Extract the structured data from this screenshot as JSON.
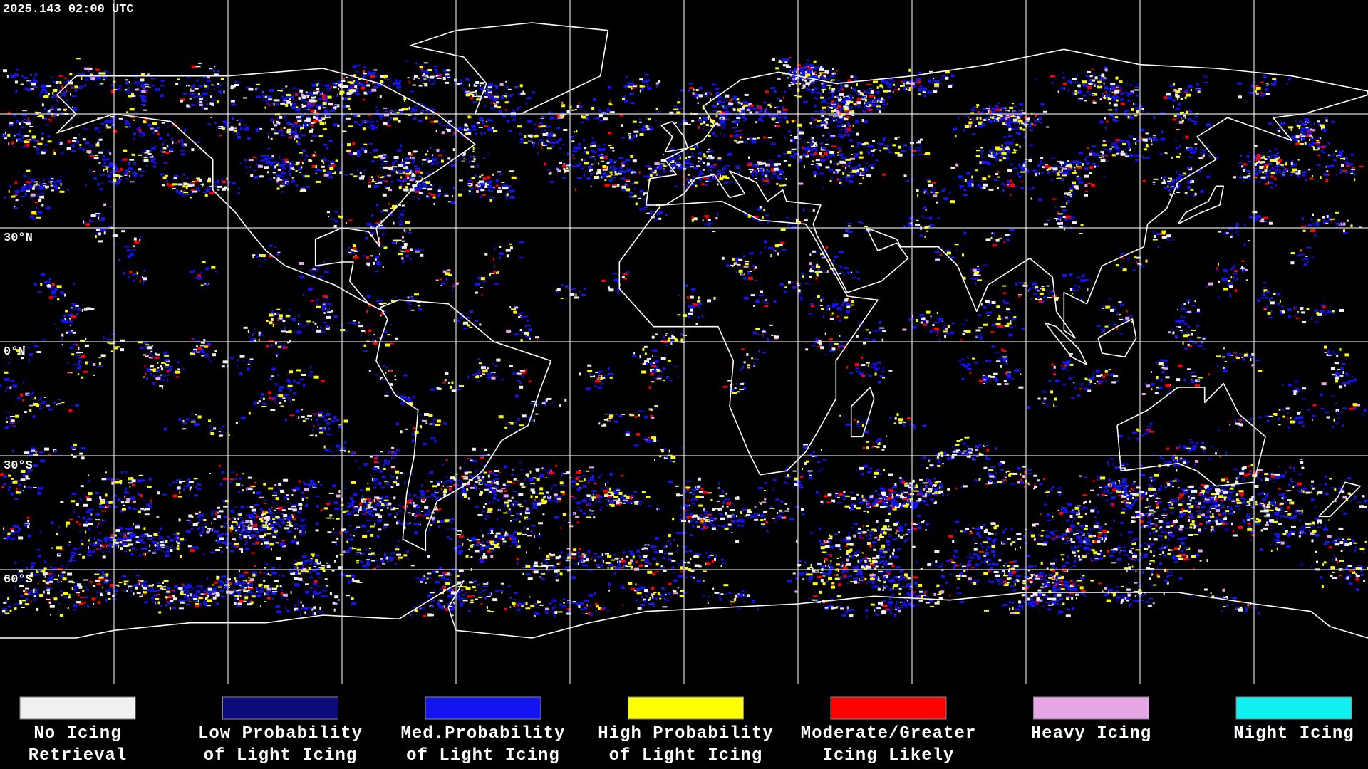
{
  "header": {
    "timestamp": "2025.143 02:00 UTC"
  },
  "map": {
    "latitude_labels": [
      "30°N",
      "0°N",
      "30°S",
      "60°S"
    ]
  },
  "legend": {
    "items": [
      {
        "label": [
          "No Icing",
          "Retrieval"
        ],
        "color": "#f0f0f0"
      },
      {
        "label": [
          "Low Probability",
          "of Light Icing"
        ],
        "color": "#0a0a78"
      },
      {
        "label": [
          "Med.Probability",
          "of Light Icing"
        ],
        "color": "#1414f0"
      },
      {
        "label": [
          "High Probability",
          "of Light Icing"
        ],
        "color": "#ffff00"
      },
      {
        "label": [
          "Moderate/Greater",
          "Icing Likely"
        ],
        "color": "#ff0000"
      },
      {
        "label": [
          "Heavy Icing"
        ],
        "color": "#e6a6e6"
      },
      {
        "label": [
          "Night Icing"
        ],
        "color": "#10f0f0"
      }
    ]
  }
}
